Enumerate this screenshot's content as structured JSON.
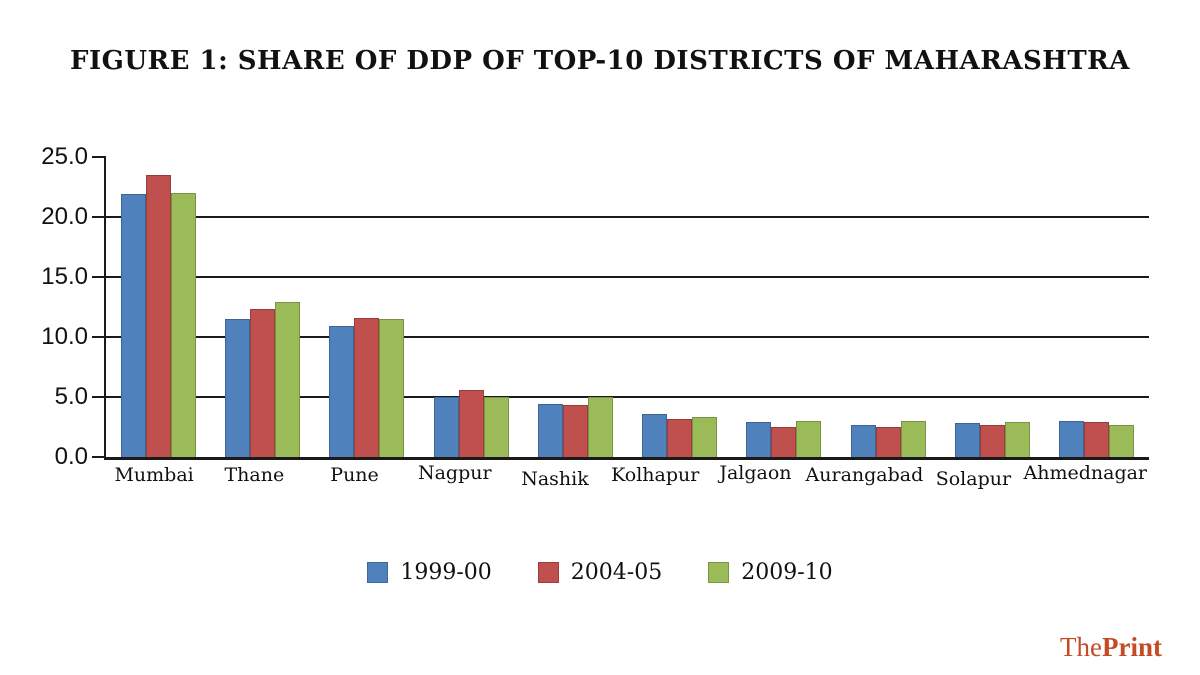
{
  "chart_data": {
    "type": "bar",
    "title": "FIGURE 1: SHARE OF DDP OF TOP-10 DISTRICTS OF MAHARASHTRA",
    "categories": [
      "Mumbai",
      "Thane",
      "Pune",
      "Nagpur",
      "Nashik",
      "Kolhapur",
      "Jalgaon",
      "Aurangabad",
      "Solapur",
      "Ahmednagar"
    ],
    "series": [
      {
        "name": "1999-00",
        "color": "#4f81bd",
        "values": [
          21.9,
          11.5,
          10.9,
          5.0,
          4.4,
          3.6,
          2.9,
          2.7,
          2.8,
          3.0
        ]
      },
      {
        "name": "2004-05",
        "color": "#c0504d",
        "values": [
          23.5,
          12.3,
          11.6,
          5.6,
          4.3,
          3.2,
          2.5,
          2.5,
          2.7,
          2.9
        ]
      },
      {
        "name": "2009-10",
        "color": "#9bbb59",
        "values": [
          22.0,
          12.9,
          11.5,
          5.0,
          5.0,
          3.3,
          3.0,
          3.0,
          2.9,
          2.7
        ]
      }
    ],
    "xlabel": "",
    "ylabel": "",
    "ylim": [
      0,
      25
    ],
    "yticks": [
      0.0,
      5.0,
      10.0,
      15.0,
      20.0,
      25.0
    ],
    "grid": "horizontal-on",
    "legend_position": "bottom",
    "axis_color": "#1a1a1a"
  },
  "branding": {
    "prefix": "The",
    "suffix": "Print",
    "color": "#c54b26"
  }
}
